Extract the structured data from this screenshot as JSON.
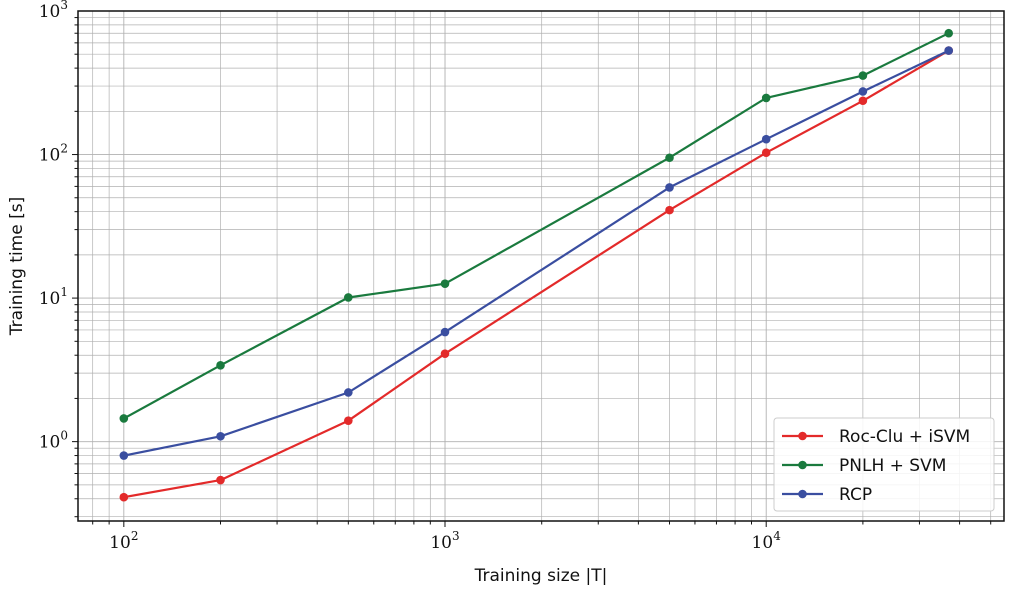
{
  "chart_data": {
    "type": "line",
    "xscale": "log",
    "yscale": "log",
    "xlabel": "Training size |T|",
    "ylabel": "Training time [s]",
    "xlim": [
      72,
      55000
    ],
    "ylim": [
      0.28,
      1000
    ],
    "grid": true,
    "legend_position": "bottom-right",
    "x_ticks": [
      {
        "base": "10",
        "exp": "2",
        "value": 100
      },
      {
        "base": "10",
        "exp": "3",
        "value": 1000
      },
      {
        "base": "10",
        "exp": "4",
        "value": 10000
      }
    ],
    "y_ticks": [
      {
        "base": "10",
        "exp": "0",
        "value": 1
      },
      {
        "base": "10",
        "exp": "1",
        "value": 10
      },
      {
        "base": "10",
        "exp": "2",
        "value": 100
      },
      {
        "base": "10",
        "exp": "3",
        "value": 1000
      }
    ],
    "x": [
      100,
      200,
      500,
      1000,
      5000,
      10000,
      20000,
      37000
    ],
    "series": [
      {
        "name": "Roc-Clu + iSVM",
        "color": "#e32a2a",
        "values": [
          0.41,
          0.54,
          1.4,
          4.1,
          41,
          103,
          237,
          530
        ]
      },
      {
        "name": "PNLH + SVM",
        "color": "#1a7a3e",
        "values": [
          1.45,
          3.4,
          10.1,
          12.6,
          95,
          248,
          355,
          700
        ]
      },
      {
        "name": "RCP",
        "color": "#3a4ea0",
        "values": [
          0.8,
          1.09,
          2.2,
          5.8,
          59,
          128,
          275,
          530
        ]
      }
    ]
  }
}
